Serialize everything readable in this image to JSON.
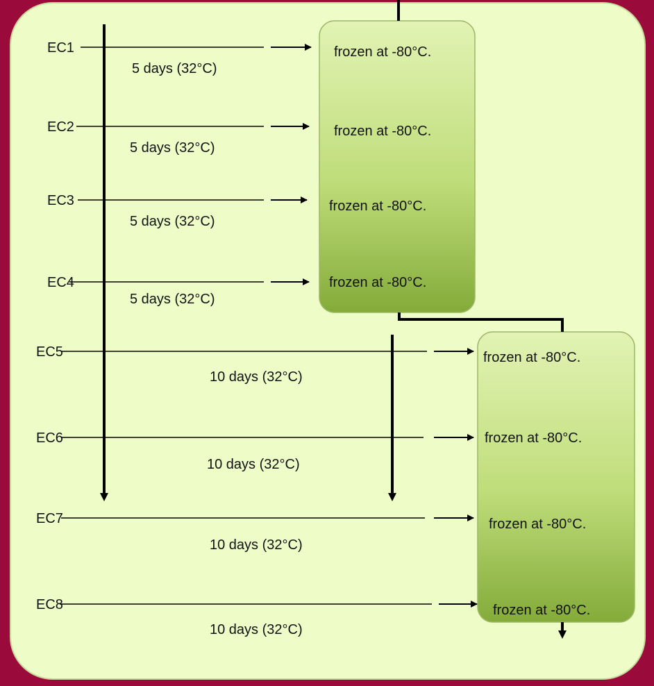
{
  "colors": {
    "background": "#9a0a3a",
    "panel": "#eefcc8",
    "box_top": "#e2f3b4",
    "box_bottom": "#84ab3a",
    "line": "#000000"
  },
  "rows": [
    {
      "label": "EC1",
      "duration": "5 days (32°C)",
      "result": "frozen at -80°C."
    },
    {
      "label": "EC2",
      "duration": "5 days (32°C)",
      "result": "frozen at -80°C."
    },
    {
      "label": "EC3",
      "duration": "5 days (32°C)",
      "result": "frozen at -80°C."
    },
    {
      "label": "EC4",
      "duration": "5 days (32°C)",
      "result": "frozen at -80°C."
    },
    {
      "label": "EC5",
      "duration": "10 days (32°C)",
      "result": "frozen at -80°C."
    },
    {
      "label": "EC6",
      "duration": "10 days (32°C)",
      "result": "frozen at -80°C."
    },
    {
      "label": "EC7",
      "duration": "10 days (32°C)",
      "result": "frozen at -80°C."
    },
    {
      "label": "EC8",
      "duration": "10 days (32°C)",
      "result": "frozen at -80°C."
    }
  ]
}
